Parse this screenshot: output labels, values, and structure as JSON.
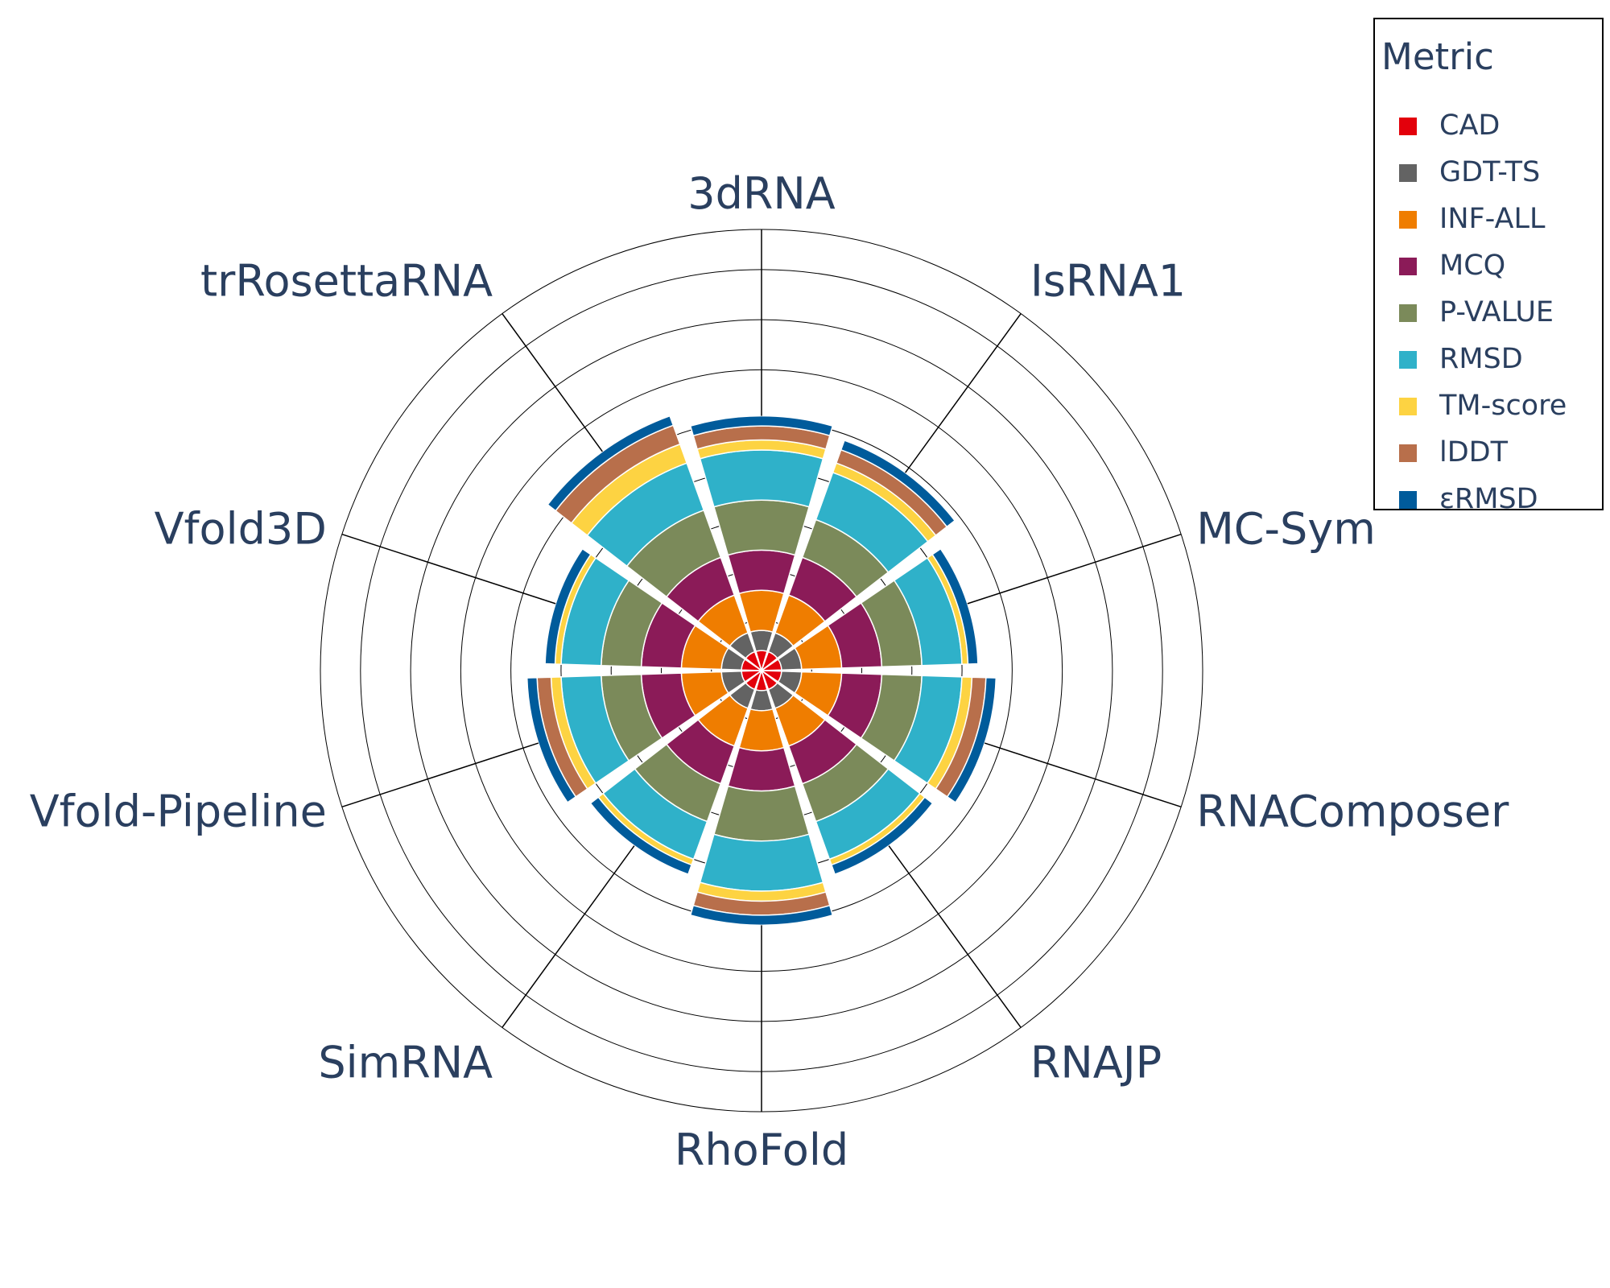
{
  "chart_data": {
    "type": "barpolar",
    "categories": [
      "3dRNA",
      "IsRNA1",
      "MC-Sym",
      "RNAComposer",
      "RNAJP",
      "RhoFold",
      "SimRNA",
      "Vfold-Pipeline",
      "Vfold3D",
      "trRosettaRNA"
    ],
    "series": [
      {
        "name": "CAD",
        "color": "#e3000b",
        "values": [
          1,
          1,
          1,
          1,
          1,
          1,
          1,
          1,
          1,
          1
        ]
      },
      {
        "name": "GDT-TS",
        "color": "#636363",
        "values": [
          1,
          1,
          1,
          1,
          1,
          1,
          1,
          1,
          1,
          1
        ]
      },
      {
        "name": "INF-ALL",
        "color": "#ef7d00",
        "values": [
          2,
          2,
          2,
          2,
          2,
          2,
          2,
          2,
          2,
          2
        ]
      },
      {
        "name": "MCQ",
        "color": "#8b1b58",
        "values": [
          2,
          2,
          2,
          2,
          2,
          2,
          2,
          2,
          2,
          2
        ]
      },
      {
        "name": "P-VALUE",
        "color": "#7b8a5a",
        "values": [
          2.5,
          2,
          2,
          2,
          2,
          2.5,
          2,
          2,
          2,
          2.5
        ]
      },
      {
        "name": "RMSD",
        "color": "#2fb1c9",
        "values": [
          2.5,
          2.5,
          2,
          2,
          2,
          2.5,
          2,
          2,
          2,
          2.5
        ]
      },
      {
        "name": "TM-score",
        "color": "#fdd342",
        "values": [
          0.5,
          0.5,
          0.3,
          0.5,
          0.3,
          0.5,
          0.3,
          0.5,
          0.3,
          1
        ]
      },
      {
        "name": "lDDT",
        "color": "#b86f4b",
        "values": [
          0.7,
          0.7,
          0,
          0.7,
          0,
          0.7,
          0,
          0.7,
          0,
          1
        ]
      },
      {
        "name": "εRMSD",
        "color": "#005b9b",
        "values": [
          0.5,
          0.5,
          0.5,
          0.5,
          0.5,
          0.5,
          0.5,
          0.5,
          0.5,
          0.5
        ]
      }
    ],
    "radial_range": [
      0,
      22
    ],
    "radial_gridlines": [
      2.5,
      5,
      7.5,
      10,
      12.5,
      15,
      17.5,
      20
    ],
    "angular_direction": "clockwise",
    "angular_rotation": 90,
    "legend_position": "top-right",
    "legend_title": "Metric"
  }
}
